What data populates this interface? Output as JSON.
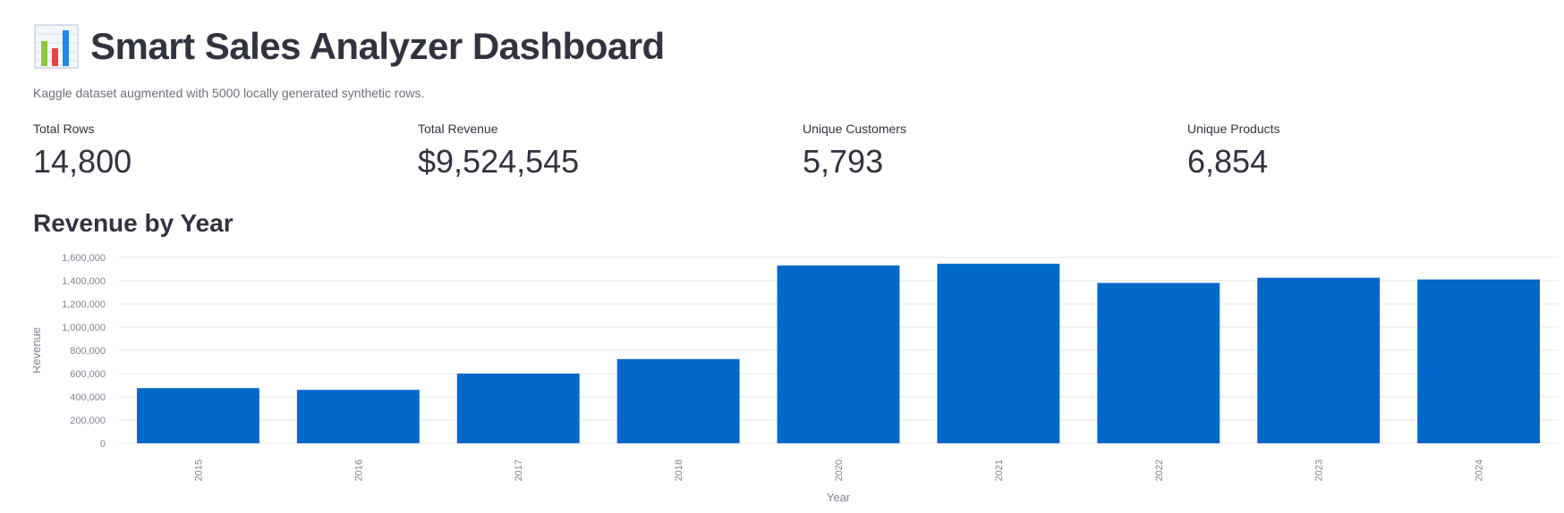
{
  "header": {
    "icon": "bar-chart-icon",
    "title": "Smart Sales Analyzer Dashboard",
    "subtitle": "Kaggle dataset augmented with 5000 locally generated synthetic rows."
  },
  "metrics": [
    {
      "label": "Total Rows",
      "value": "14,800"
    },
    {
      "label": "Total Revenue",
      "value": "$9,524,545"
    },
    {
      "label": "Unique Customers",
      "value": "5,793"
    },
    {
      "label": "Unique Products",
      "value": "6,854"
    }
  ],
  "section": {
    "title": "Revenue by Year"
  },
  "colors": {
    "bar": "#0068c9",
    "grid": "#e6e9ef",
    "text": "#31333f",
    "muted": "#808495"
  },
  "chart_data": {
    "type": "bar",
    "title": "Revenue by Year",
    "xlabel": "Year",
    "ylabel": "Revenue",
    "categories": [
      "2015",
      "2016",
      "2017",
      "2018",
      "2020",
      "2021",
      "2022",
      "2023",
      "2024"
    ],
    "values": [
      475000,
      460000,
      600000,
      725000,
      1530000,
      1545000,
      1380000,
      1425000,
      1410000
    ],
    "ylim": [
      0,
      1600000
    ],
    "yticks": [
      "0",
      "200,000",
      "400,000",
      "600,000",
      "800,000",
      "1,000,000",
      "1,200,000",
      "1,400,000",
      "1,600,000"
    ],
    "grid": true
  }
}
